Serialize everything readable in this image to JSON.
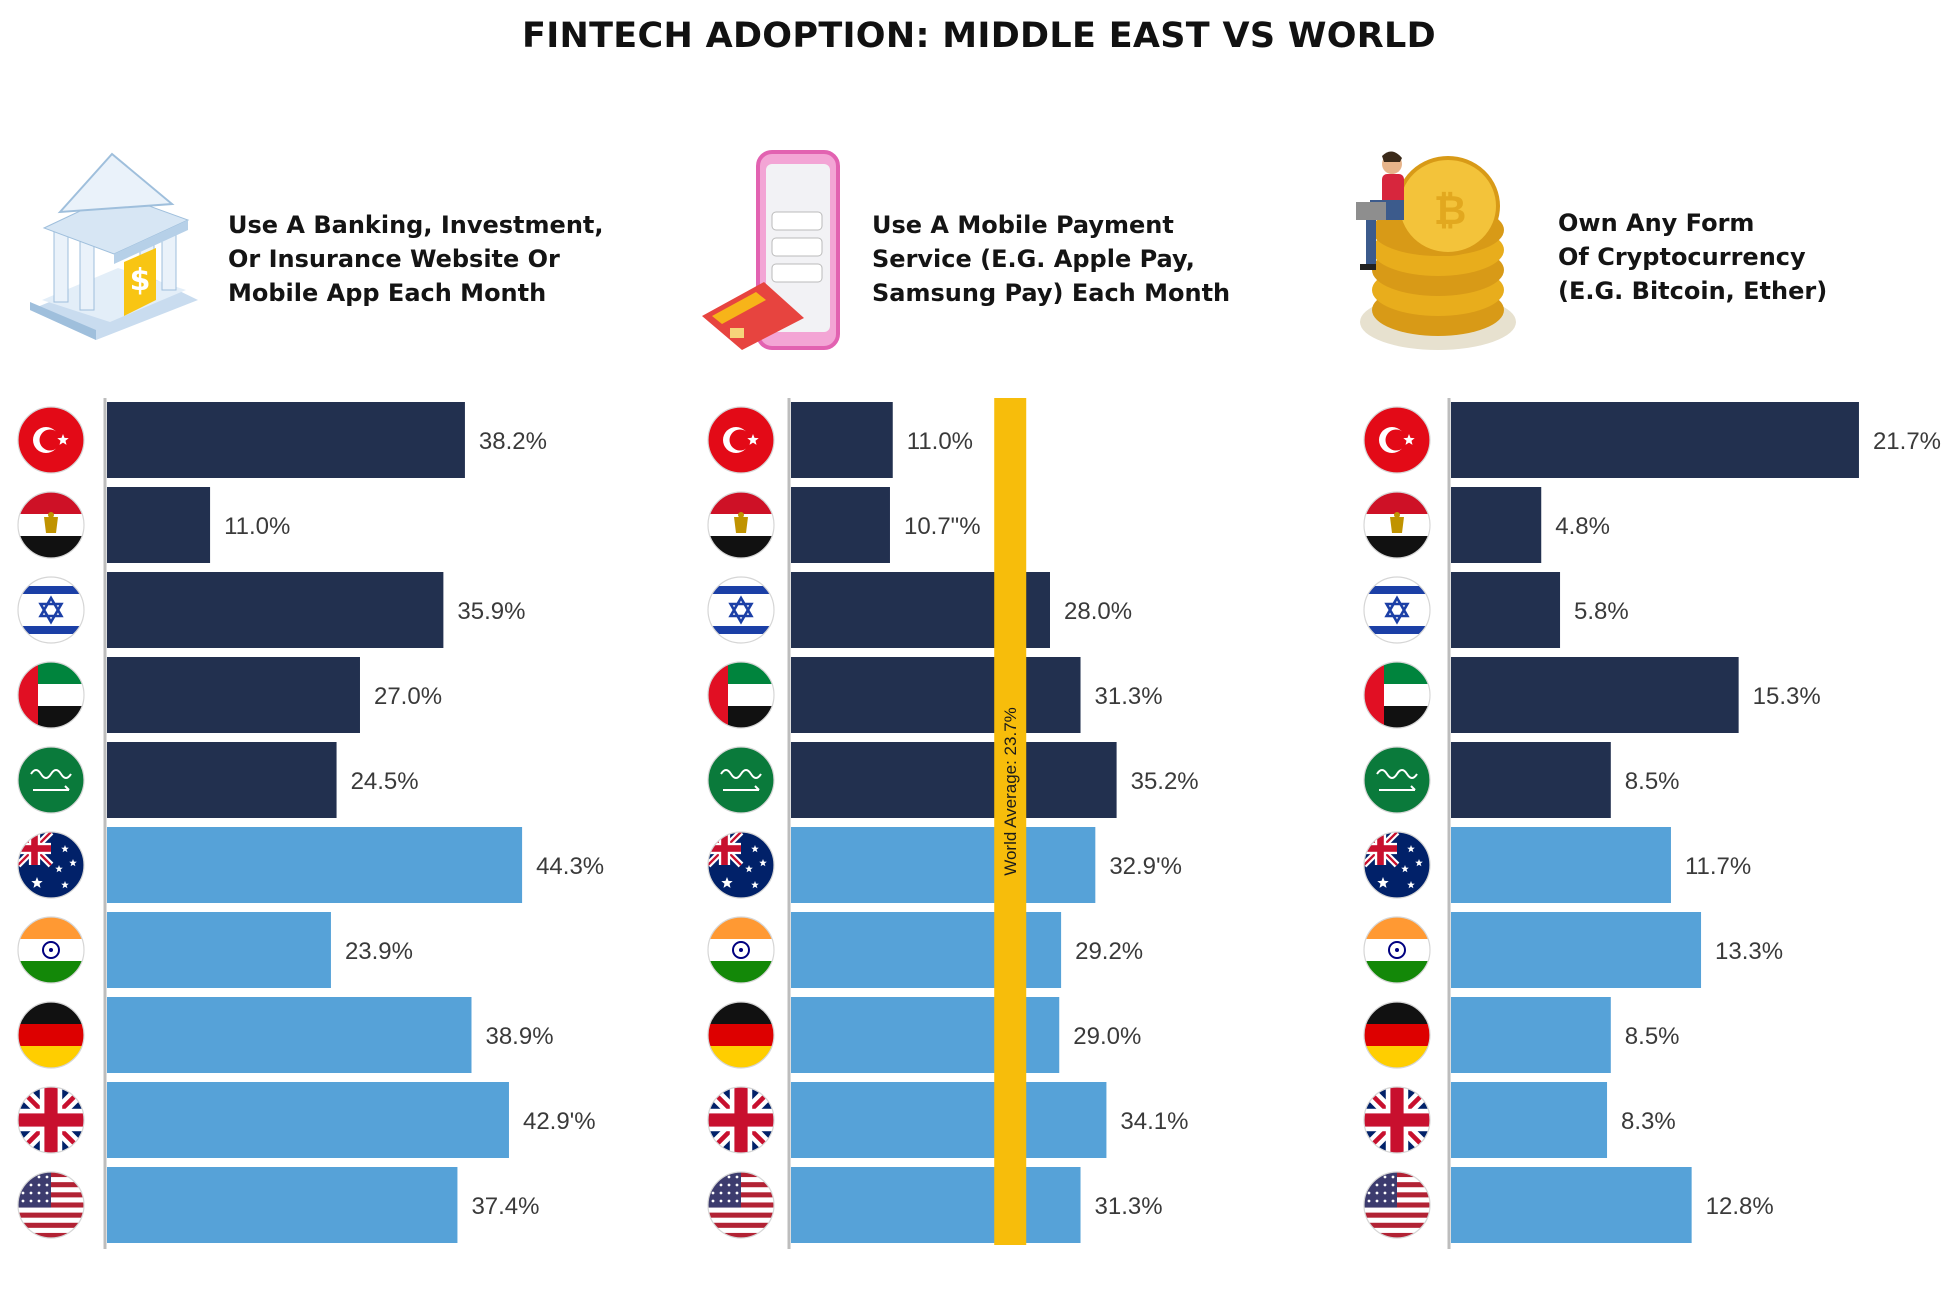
{
  "title": "FINTECH ADOPTION: MIDDLE EAST VS WORLD",
  "colors": {
    "middle_east_bar": "#22304f",
    "world_bar": "#56a2d8",
    "average_line": "#f7bd0b",
    "axis": "#bdbdbd"
  },
  "flags": [
    "turkey-flag-icon",
    "egypt-flag-icon",
    "israel-flag-icon",
    "uae-flag-icon",
    "saudi-arabia-flag-icon",
    "australia-flag-icon",
    "india-flag-icon",
    "germany-flag-icon",
    "uk-flag-icon",
    "usa-flag-icon"
  ],
  "panel_icons": [
    "bank-building-icon",
    "mobile-payment-phone-icon",
    "crypto-coins-icon"
  ],
  "chart_data": [
    {
      "type": "bar",
      "orientation": "horizontal",
      "heading_lines": [
        "Use A Banking, Investment,",
        "Or Insurance Website Or",
        "Mobile App Each Month"
      ],
      "values": [
        38.2,
        11.0,
        35.9,
        27.0,
        24.5,
        44.3,
        23.9,
        38.9,
        42.9,
        37.4
      ],
      "value_labels": [
        "38.2%",
        "11.0%",
        "35.9%",
        "27.0%",
        "24.5%",
        "44.3%",
        "23.9%",
        "38.9%",
        "42.9'%",
        "37.4%"
      ],
      "groups": [
        "middle_east",
        "middle_east",
        "middle_east",
        "middle_east",
        "middle_east",
        "world",
        "world",
        "world",
        "world",
        "world"
      ],
      "xlim": [
        0,
        50
      ]
    },
    {
      "type": "bar",
      "orientation": "horizontal",
      "heading_lines": [
        "Use A Mobile Payment",
        "Service (E.G. Apple Pay,",
        "Samsung Pay) Each Month"
      ],
      "values": [
        11.0,
        10.7,
        28.0,
        31.3,
        35.2,
        32.9,
        29.2,
        29.0,
        34.1,
        31.3
      ],
      "value_labels": [
        "11.0%",
        "10.7\"%",
        "28.0%",
        "31.3%",
        "35.2%",
        "32.9'%",
        "29.2%",
        "29.0%",
        "34.1%",
        "31.3%"
      ],
      "groups": [
        "middle_east",
        "middle_east",
        "middle_east",
        "middle_east",
        "middle_east",
        "world",
        "world",
        "world",
        "world",
        "world"
      ],
      "xlim": [
        0,
        50
      ],
      "reference_line": {
        "value": 23.7,
        "label": "World Average: 23.7%"
      }
    },
    {
      "type": "bar",
      "orientation": "horizontal",
      "heading_lines": [
        "Own Any Form",
        "Of Cryptocurrency",
        "(E.G. Bitcoin, Ether)"
      ],
      "values": [
        21.7,
        4.8,
        5.8,
        15.3,
        8.5,
        11.7,
        13.3,
        8.5,
        8.3,
        12.8
      ],
      "value_labels": [
        "21.7%",
        "4.8%",
        "5.8%",
        "15.3%",
        "8.5%",
        "11.7%",
        "13.3%",
        "8.5%",
        "8.3%",
        "12.8%"
      ],
      "groups": [
        "middle_east",
        "middle_east",
        "middle_east",
        "middle_east",
        "middle_east",
        "world",
        "world",
        "world",
        "world",
        "world"
      ],
      "xlim": [
        0,
        27
      ]
    }
  ]
}
